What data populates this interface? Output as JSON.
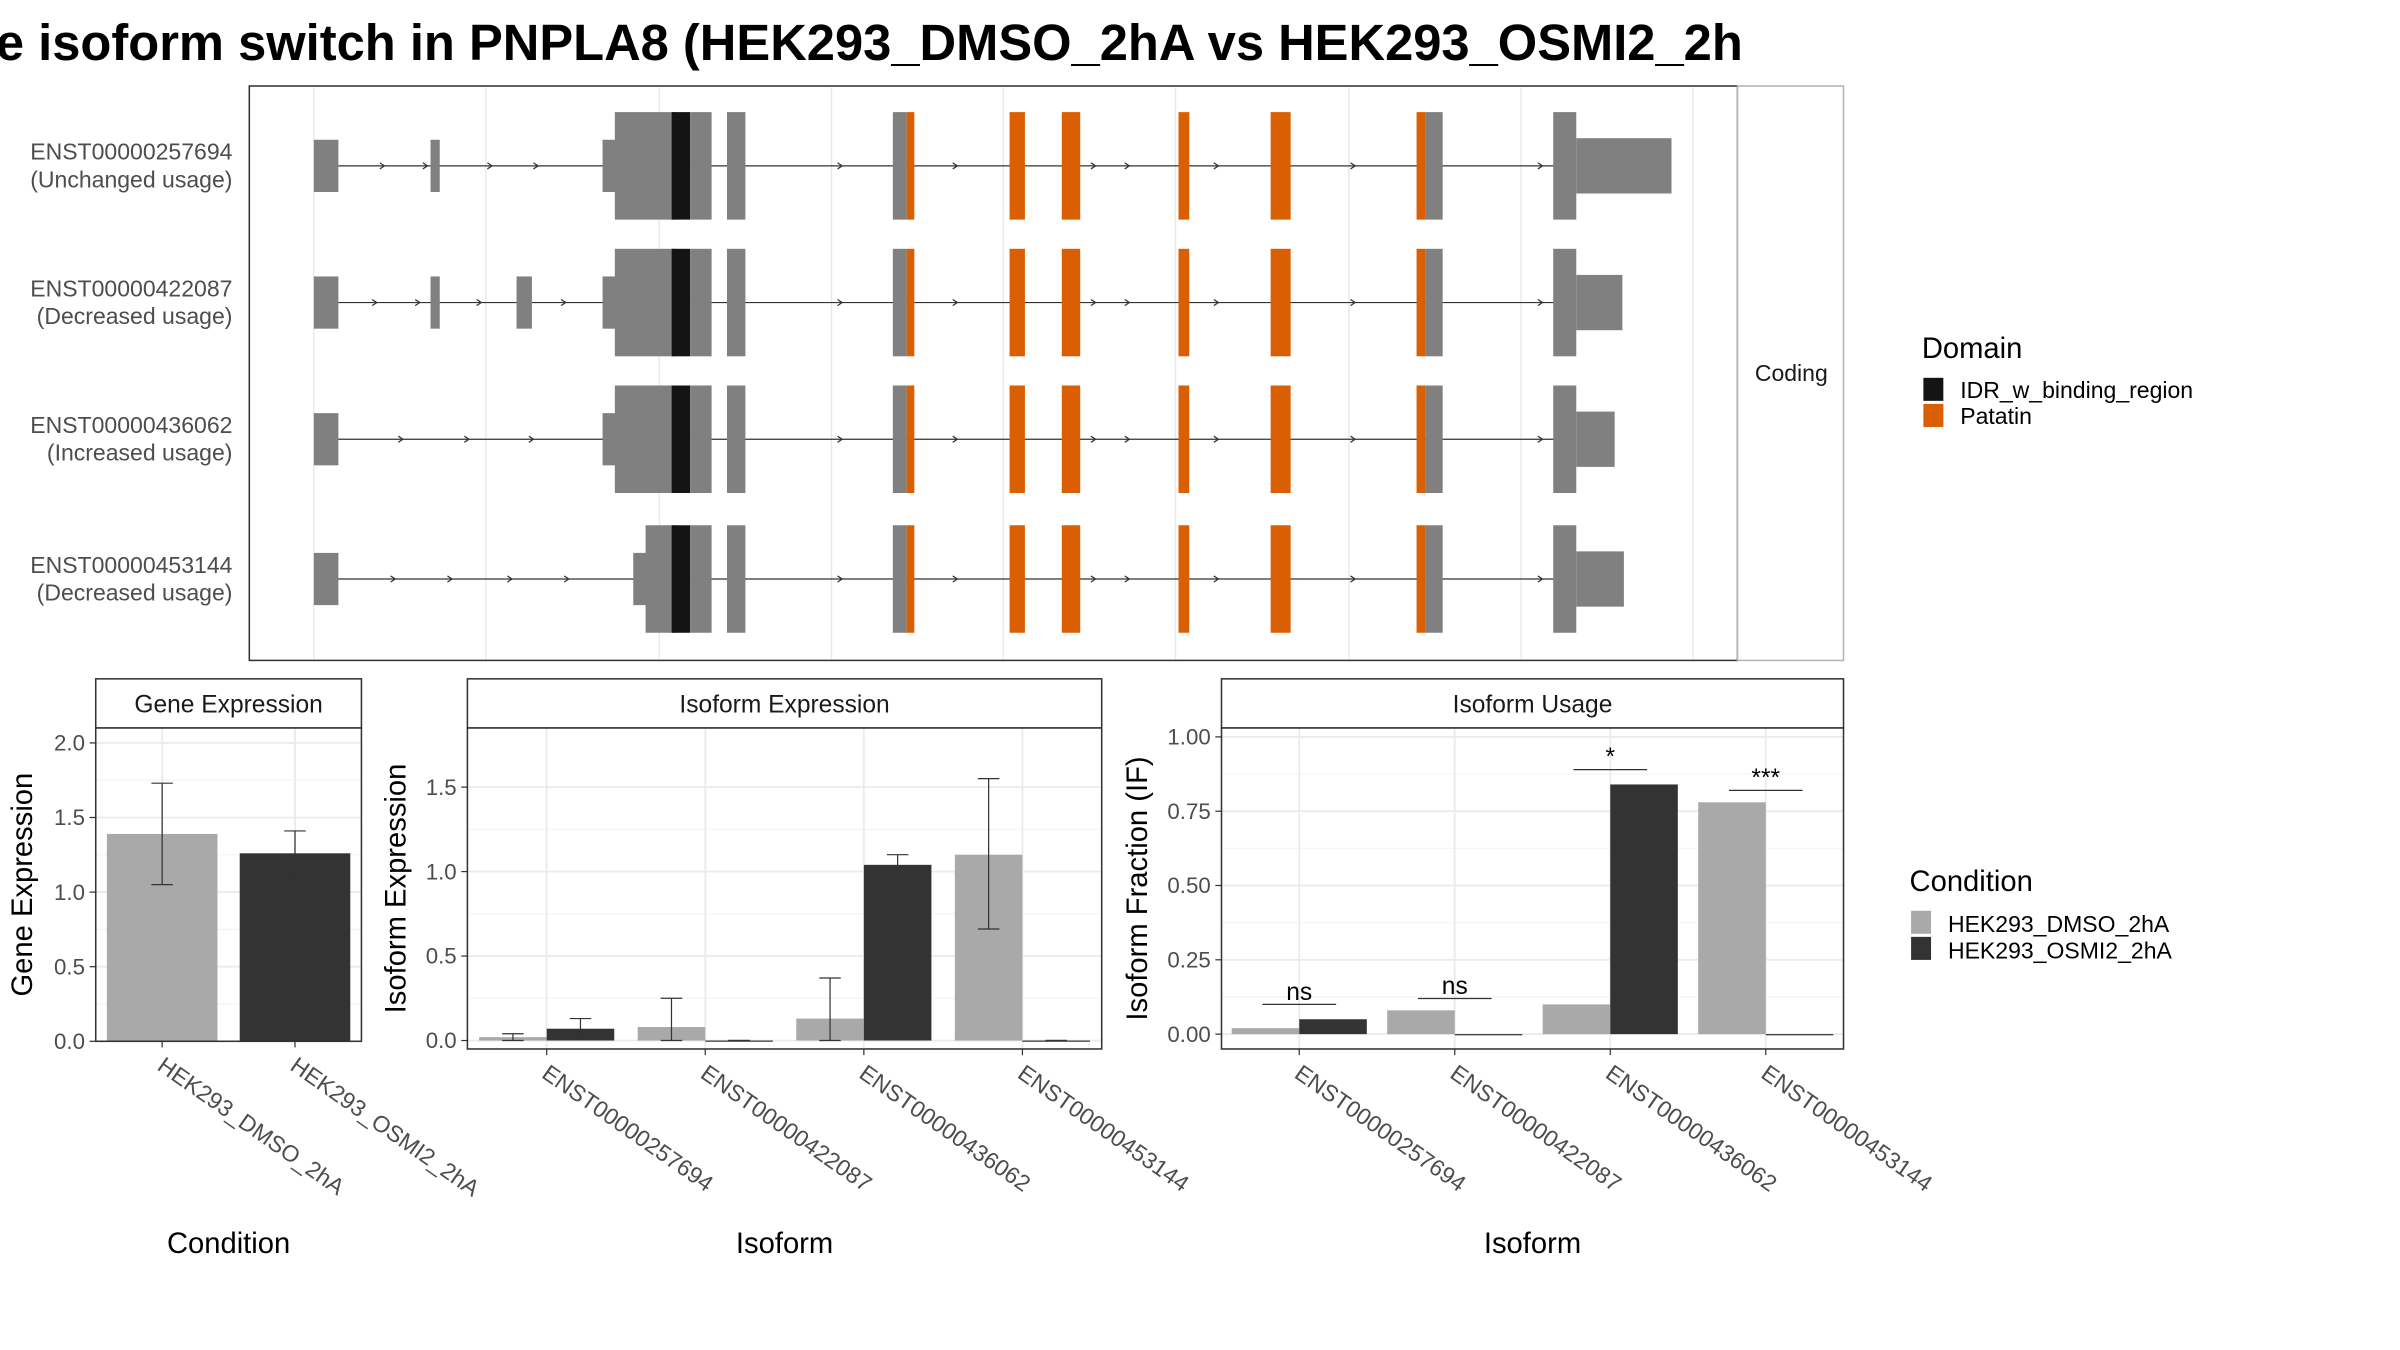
{
  "title": "e isoform switch in PNPLA8 (HEK293_DMSO_2hA vs HEK293_OSMI2_2h",
  "colors": {
    "exon": "#808080",
    "idr": "#141414",
    "patatin": "#d95f02",
    "dmso": "#a9a9a9",
    "osmi": "#333333"
  },
  "structure": {
    "facet_label": "Coding",
    "isoforms": [
      {
        "id": "ENST00000257694",
        "usage": "(Unchanged usage)"
      },
      {
        "id": "ENST00000422087",
        "usage": "(Decreased usage)"
      },
      {
        "id": "ENST00000436062",
        "usage": "(Increased usage)"
      },
      {
        "id": "ENST00000453144",
        "usage": "(Decreased usage)"
      }
    ]
  },
  "legends": {
    "domain": {
      "title": "Domain",
      "items": [
        "IDR_w_binding_region",
        "Patatin"
      ]
    },
    "condition": {
      "title": "Condition",
      "items": [
        "HEK293_DMSO_2hA",
        "HEK293_OSMI2_2hA"
      ]
    }
  },
  "chart_data": [
    {
      "type": "bar",
      "panel_title": "Gene Expression",
      "xlabel": "Condition",
      "ylabel": "Gene Expression",
      "ylim": [
        0,
        2.1
      ],
      "yticks": [
        0.0,
        0.5,
        1.0,
        1.5,
        2.0
      ],
      "categories": [
        "HEK293_DMSO_2hA",
        "HEK293_OSMI2_2hA"
      ],
      "values": [
        1.39,
        1.26
      ],
      "errors": [
        [
          1.05,
          1.73
        ],
        [
          1.11,
          1.41
        ]
      ]
    },
    {
      "type": "bar",
      "panel_title": "Isoform Expression",
      "xlabel": "Isoform",
      "ylabel": "Isoform Expression",
      "ylim": [
        -0.05,
        1.85
      ],
      "yticks": [
        0.0,
        0.5,
        1.0,
        1.5
      ],
      "categories": [
        "ENST00000257694",
        "ENST00000422087",
        "ENST00000436062",
        "ENST00000453144"
      ],
      "series": [
        {
          "name": "HEK293_DMSO_2hA",
          "values": [
            0.02,
            0.08,
            0.13,
            1.1
          ],
          "errors": [
            [
              0.0,
              0.04
            ],
            [
              0.0,
              0.25
            ],
            [
              0.0,
              0.37
            ],
            [
              0.66,
              1.55
            ]
          ]
        },
        {
          "name": "HEK293_OSMI2_2hA",
          "values": [
            0.07,
            0.0,
            1.04,
            0.0
          ],
          "errors": [
            [
              0.01,
              0.13
            ],
            [
              0.0,
              0.0
            ],
            [
              0.99,
              1.1
            ],
            [
              0.0,
              0.0
            ]
          ]
        }
      ]
    },
    {
      "type": "bar",
      "panel_title": "Isoform Usage",
      "xlabel": "Isoform",
      "ylabel": "Isoform Fraction (IF)",
      "ylim": [
        -0.05,
        1.03
      ],
      "yticks": [
        0.0,
        0.25,
        0.5,
        0.75,
        1.0
      ],
      "yticklabels": [
        "0.00",
        "0.25",
        "0.50",
        "0.75",
        "1.00"
      ],
      "categories": [
        "ENST00000257694",
        "ENST00000422087",
        "ENST00000436062",
        "ENST00000453144"
      ],
      "series": [
        {
          "name": "HEK293_DMSO_2hA",
          "values": [
            0.02,
            0.08,
            0.1,
            0.78
          ]
        },
        {
          "name": "HEK293_OSMI2_2hA",
          "values": [
            0.05,
            0.0,
            0.84,
            0.0
          ]
        }
      ],
      "annotations": [
        {
          "category": "ENST00000257694",
          "label": "ns",
          "y": 0.1
        },
        {
          "category": "ENST00000422087",
          "label": "ns",
          "y": 0.12
        },
        {
          "category": "ENST00000436062",
          "label": "*",
          "y": 0.89
        },
        {
          "category": "ENST00000453144",
          "label": "***",
          "y": 0.82
        }
      ]
    }
  ]
}
